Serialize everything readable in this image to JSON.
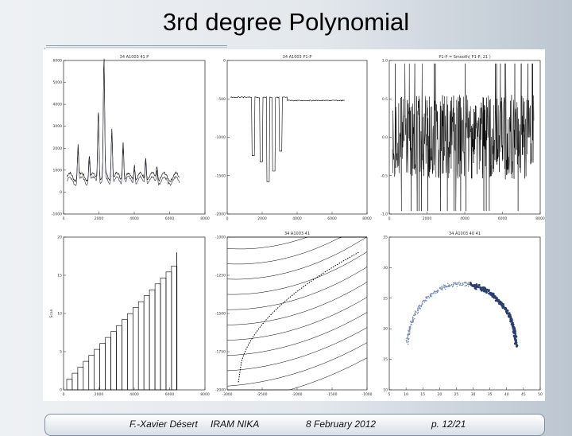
{
  "slide": {
    "title": "3rd degree Polynomial"
  },
  "footer": {
    "author": "F.-Xavier Désert",
    "institute": "IRAM NIKA",
    "date": "8 February 2012",
    "page": "p. 12/21"
  },
  "panels": [
    {
      "title": "34 A1003  41  P",
      "ylabel": "",
      "yticks": [
        "-1000",
        "0",
        "1000",
        "2000",
        "3000",
        "4000",
        "5000",
        "6000"
      ],
      "xticks": [
        "0",
        "2000",
        "4000",
        "6000",
        "8000"
      ]
    },
    {
      "title": "34 A1003  P1-P",
      "ylabel": "",
      "yticks": [
        "-2000",
        "-1500",
        "-1000",
        "-500",
        "0"
      ],
      "xticks": [
        "0",
        "2000",
        "4000",
        "6000",
        "8000"
      ]
    },
    {
      "title": "P1-P = Smooth( P1-P, 21 )",
      "ylabel": "",
      "yticks": [
        "-1.0",
        "-0.5",
        "0.0",
        "0.5",
        "1.0"
      ],
      "xticks": [
        "0",
        "2000",
        "4000",
        "6000",
        "8000"
      ]
    },
    {
      "title": "",
      "ylabel": "Scan",
      "yticks": [
        "0",
        "5",
        "10",
        "15",
        "20"
      ],
      "xticks": [
        "0",
        "2000",
        "4000",
        "6000",
        "8000"
      ]
    },
    {
      "title": "34 A1003  41",
      "ylabel": "",
      "yticks": [
        "-2000",
        "-1750",
        "-1500",
        "-1250",
        "-1000"
      ],
      "xticks": [
        "-3000",
        "-2500",
        "-2000",
        "-1500",
        "-1000"
      ]
    },
    {
      "title": "34 A1003  40  41",
      "ylabel": "",
      "yticks": [
        "10",
        "15",
        "20",
        "25",
        "30",
        "35"
      ],
      "xticks": [
        "5",
        "10",
        "15",
        "20",
        "25",
        "30",
        "35",
        "40",
        "45",
        "50"
      ]
    }
  ]
}
